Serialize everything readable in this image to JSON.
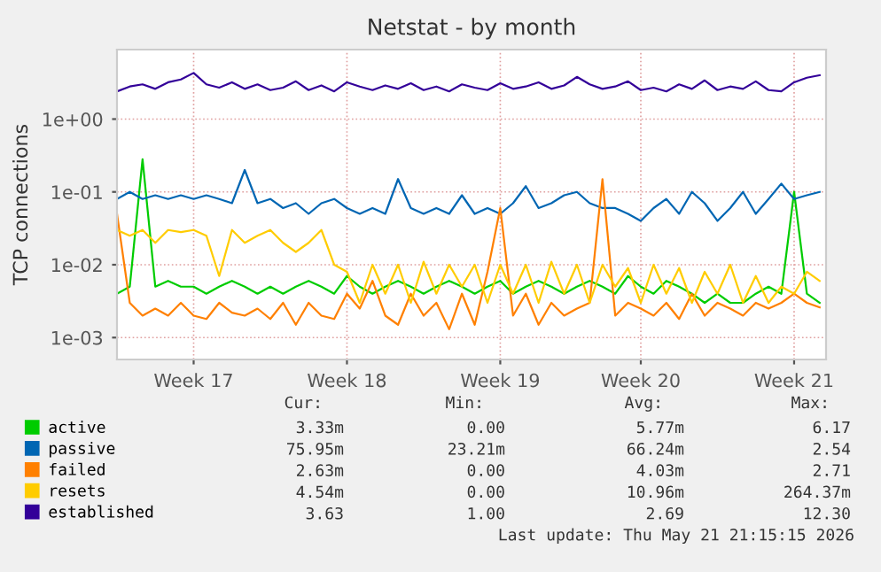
{
  "chart_data": {
    "type": "line",
    "title": "Netstat - by month",
    "ylabel": "TCP connections",
    "categories": [
      null,
      null,
      null,
      null,
      null,
      null,
      "Week 17",
      null,
      null,
      null,
      null,
      null,
      null,
      null,
      null,
      null,
      null,
      null,
      "Week 18",
      null,
      null,
      null,
      null,
      null,
      null,
      null,
      null,
      null,
      null,
      null,
      "Week 19",
      null,
      null,
      null,
      null,
      null,
      null,
      null,
      null,
      null,
      null,
      "Week 20",
      null,
      null,
      null,
      null,
      null,
      null,
      null,
      null,
      null,
      null,
      null,
      "Week 21",
      null,
      null
    ],
    "series": [
      {
        "name": "active",
        "color": "#00cc00",
        "values": [
          0.004,
          0.005,
          0.28,
          0.005,
          0.006,
          0.005,
          0.005,
          0.004,
          0.005,
          0.006,
          0.005,
          0.004,
          0.005,
          0.004,
          0.005,
          0.006,
          0.005,
          0.004,
          0.007,
          0.005,
          0.004,
          0.005,
          0.006,
          0.005,
          0.004,
          0.005,
          0.006,
          0.005,
          0.004,
          0.005,
          0.006,
          0.004,
          0.005,
          0.006,
          0.005,
          0.004,
          0.005,
          0.006,
          0.005,
          0.004,
          0.007,
          0.005,
          0.004,
          0.006,
          0.005,
          0.004,
          0.003,
          0.004,
          0.003,
          0.003,
          0.004,
          0.005,
          0.004,
          0.1,
          0.004,
          0.003
        ]
      },
      {
        "name": "passive",
        "color": "#0066b3",
        "values": [
          0.08,
          0.1,
          0.08,
          0.09,
          0.08,
          0.09,
          0.08,
          0.09,
          0.08,
          0.07,
          0.2,
          0.07,
          0.08,
          0.06,
          0.07,
          0.05,
          0.07,
          0.08,
          0.06,
          0.05,
          0.06,
          0.05,
          0.15,
          0.06,
          0.05,
          0.06,
          0.05,
          0.09,
          0.05,
          0.06,
          0.05,
          0.07,
          0.12,
          0.06,
          0.07,
          0.09,
          0.1,
          0.07,
          0.06,
          0.06,
          0.05,
          0.04,
          0.06,
          0.08,
          0.05,
          0.1,
          0.07,
          0.04,
          0.06,
          0.1,
          0.05,
          0.08,
          0.13,
          0.08,
          0.09,
          0.1
        ]
      },
      {
        "name": "failed",
        "color": "#ff8000",
        "values": [
          0.05,
          0.003,
          0.002,
          0.0025,
          0.002,
          0.003,
          0.002,
          0.0018,
          0.003,
          0.0022,
          0.002,
          0.0025,
          0.0018,
          0.003,
          0.0015,
          0.003,
          0.002,
          0.0018,
          0.004,
          0.0025,
          0.006,
          0.002,
          0.0015,
          0.004,
          0.002,
          0.003,
          0.0013,
          0.004,
          0.0015,
          0.008,
          0.06,
          0.002,
          0.004,
          0.0015,
          0.003,
          0.002,
          0.0025,
          0.003,
          0.15,
          0.002,
          0.003,
          0.0025,
          0.002,
          0.003,
          0.0018,
          0.004,
          0.002,
          0.003,
          0.0025,
          0.002,
          0.003,
          0.0025,
          0.003,
          0.004,
          0.003,
          0.0026
        ]
      },
      {
        "name": "resets",
        "color": "#ffcc00",
        "values": [
          0.03,
          0.025,
          0.03,
          0.02,
          0.03,
          0.028,
          0.03,
          0.025,
          0.007,
          0.03,
          0.02,
          0.025,
          0.03,
          0.02,
          0.015,
          0.02,
          0.03,
          0.01,
          0.008,
          0.003,
          0.01,
          0.004,
          0.01,
          0.003,
          0.011,
          0.004,
          0.01,
          0.005,
          0.01,
          0.003,
          0.01,
          0.004,
          0.01,
          0.003,
          0.011,
          0.004,
          0.01,
          0.003,
          0.01,
          0.005,
          0.009,
          0.003,
          0.01,
          0.004,
          0.009,
          0.003,
          0.008,
          0.004,
          0.01,
          0.003,
          0.007,
          0.003,
          0.005,
          0.004,
          0.008,
          0.006
        ]
      },
      {
        "name": "established",
        "color": "#330099",
        "values": [
          2.4,
          2.8,
          3.0,
          2.6,
          3.2,
          3.5,
          4.3,
          3.0,
          2.7,
          3.2,
          2.6,
          3.0,
          2.5,
          2.7,
          3.3,
          2.5,
          2.9,
          2.4,
          3.2,
          2.8,
          2.5,
          2.9,
          2.6,
          3.1,
          2.5,
          2.8,
          2.4,
          3.0,
          2.7,
          2.5,
          3.1,
          2.6,
          2.8,
          3.2,
          2.6,
          2.9,
          3.8,
          3.0,
          2.6,
          2.8,
          3.3,
          2.5,
          2.7,
          2.4,
          3.0,
          2.6,
          3.4,
          2.5,
          2.8,
          2.6,
          3.3,
          2.5,
          2.4,
          3.2,
          3.7,
          4.0
        ]
      }
    ],
    "log": "y",
    "ylim": [
      0.0005,
      9
    ],
    "yticks": [
      {
        "value": 0.001,
        "label": "1e-03"
      },
      {
        "value": 0.01,
        "label": "1e-02"
      },
      {
        "value": 0.1,
        "label": "1e-01"
      },
      {
        "value": 1,
        "label": "1e+00"
      }
    ],
    "grid": true,
    "legend": "bottom left",
    "marker": "none",
    "line_style": "solid",
    "annotations": [
      "Cur:",
      "Min:",
      "Avg:",
      "Max:",
      "3.33m",
      "0.00",
      "5.77m",
      "6.17",
      "75.95m",
      "23.21m",
      "66.24m",
      "2.54",
      "2.63m",
      "0.00",
      "4.03m",
      "2.71",
      "4.54m",
      "0.00",
      "10.96m",
      "264.37m",
      "3.63",
      "1.00",
      "2.69",
      "12.30",
      "Last update: Thu May 21 21:15:15 2026"
    ]
  }
}
